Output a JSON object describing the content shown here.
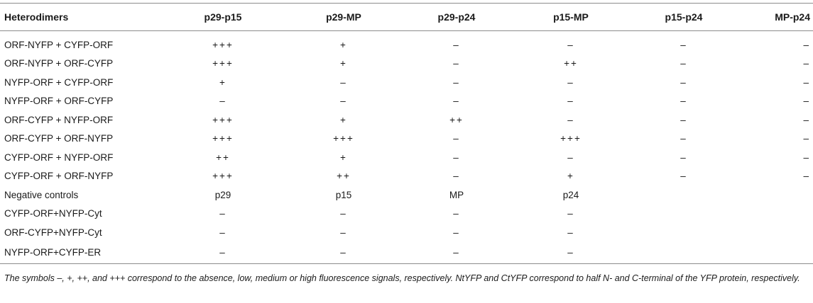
{
  "table": {
    "headers": [
      "Heterodimers",
      "p29-p15",
      "p29-MP",
      "p29-p24",
      "p15-MP",
      "p15-p24",
      "MP-p24"
    ],
    "rows": [
      [
        "ORF-NYFP + CYFP-ORF",
        "+++",
        "+",
        "–",
        "–",
        "–",
        "–"
      ],
      [
        "ORF-NYFP + ORF-CYFP",
        "+++",
        "+",
        "–",
        "++",
        "–",
        "–"
      ],
      [
        "NYFP-ORF + CYFP-ORF",
        "+",
        "–",
        "–",
        "–",
        "–",
        "–"
      ],
      [
        "NYFP-ORF + ORF-CYFP",
        "–",
        "–",
        "–",
        "–",
        "–",
        "–"
      ],
      [
        "ORF-CYFP + NYFP-ORF",
        "+++",
        "+",
        "++",
        "–",
        "–",
        "–"
      ],
      [
        "ORF-CYFP + ORF-NYFP",
        "+++",
        "+++",
        "–",
        "+++",
        "–",
        "–"
      ],
      [
        "CYFP-ORF + NYFP-ORF",
        "++",
        "+",
        "–",
        "–",
        "–",
        "–"
      ],
      [
        "CYFP-ORF + ORF-NYFP",
        "+++",
        "++",
        "–",
        "+",
        "–",
        "–"
      ],
      [
        "Negative controls",
        "p29",
        "p15",
        "MP",
        "p24",
        "",
        ""
      ],
      [
        "CYFP-ORF+NYFP-Cyt",
        "–",
        "–",
        "–",
        "–",
        "",
        ""
      ],
      [
        "ORF-CYFP+NYFP-Cyt",
        "–",
        "–",
        "–",
        "–",
        "",
        ""
      ],
      [
        "NYFP-ORF+CYFP-ER",
        "–",
        "–",
        "–",
        "–",
        "",
        ""
      ]
    ]
  },
  "footnote": "The symbols –, +, ++, and +++ correspond to the absence, low, medium or high fluorescence signals, respectively. NtYFP and CtYFP correspond to half N- and C-terminal of the YFP protein, respectively."
}
